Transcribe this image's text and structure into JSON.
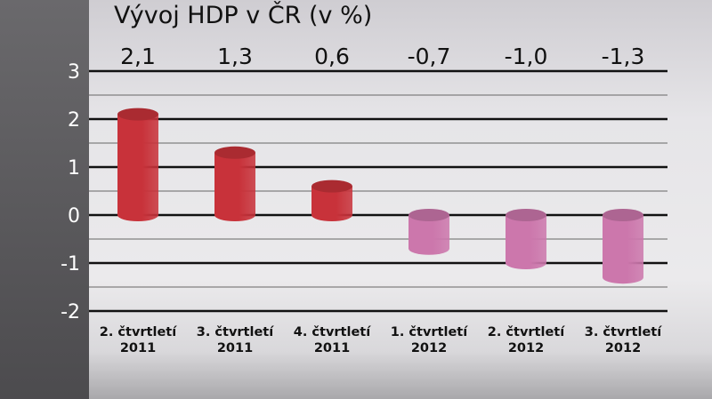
{
  "chart_data": {
    "type": "bar",
    "title": "Vývoj HDP v ČR (v %)",
    "categories": [
      [
        "2. čtvrtletí",
        "2011"
      ],
      [
        "3. čtvrtletí",
        "2011"
      ],
      [
        "4. čtvrtletí",
        "2011"
      ],
      [
        "1. čtvrtletí",
        "2012"
      ],
      [
        "2. čtvrtletí",
        "2012"
      ],
      [
        "3. čtvrtletí",
        "2012"
      ]
    ],
    "values": [
      2.1,
      1.3,
      0.6,
      -0.7,
      -1.0,
      -1.3
    ],
    "value_labels": [
      "2,1",
      "1,3",
      "0,6",
      "-0,7",
      "-1,0",
      "-1,3"
    ],
    "yticks": [
      3,
      2,
      1,
      0,
      -1,
      -2
    ],
    "ylim": [
      -2,
      3
    ],
    "grid": true,
    "bar_style": "cylinder",
    "colors": {
      "positive": "#c8323a",
      "negative": "#cc77ac"
    }
  }
}
